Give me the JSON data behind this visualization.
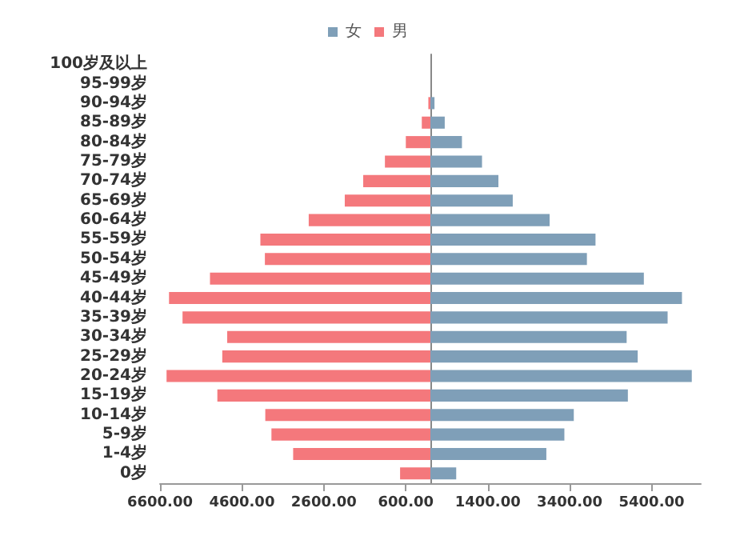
{
  "chart_data": {
    "type": "bar",
    "orientation": "horizontal",
    "stacked": true,
    "legend": "top",
    "grid": false,
    "categories": [
      "100岁及以上",
      "95-99岁",
      "90-94岁",
      "85-89岁",
      "80-84岁",
      "75-79岁",
      "70-74岁",
      "65-69岁",
      "60-64岁",
      "55-59岁",
      "50-54岁",
      "45-49岁",
      "40-44岁",
      "35-39岁",
      "30-34岁",
      "25-29岁",
      "20-24岁",
      "15-19岁",
      "10-14岁",
      "5-9岁",
      "1-4岁",
      "0岁"
    ],
    "series": [
      {
        "name": "女",
        "color": "#7f9fb8",
        "values": [
          0,
          0,
          100,
          350,
          770,
          1260,
          1660,
          2010,
          2910,
          4030,
          3820,
          5210,
          6140,
          5790,
          4790,
          5060,
          6380,
          4820,
          3500,
          3270,
          2830,
          630
        ]
      },
      {
        "name": "男",
        "color": "#f4787c",
        "values": [
          0,
          0,
          -50,
          -210,
          -600,
          -1110,
          -1640,
          -2090,
          -2970,
          -4150,
          -4040,
          -5380,
          -6380,
          -6050,
          -4960,
          -5080,
          -6440,
          -5200,
          -4030,
          -3880,
          -3350,
          -740
        ]
      }
    ],
    "xlim": [
      -6600,
      6600
    ],
    "xticks": [
      {
        "value": -6600,
        "label": "6600.00"
      },
      {
        "value": -4600,
        "label": "4600.00"
      },
      {
        "value": -2600,
        "label": "2600.00"
      },
      {
        "value": -600,
        "label": "600.00"
      },
      {
        "value": 1400,
        "label": "1400.00"
      },
      {
        "value": 3400,
        "label": "3400.00"
      },
      {
        "value": 5400,
        "label": "5400.00"
      }
    ]
  }
}
